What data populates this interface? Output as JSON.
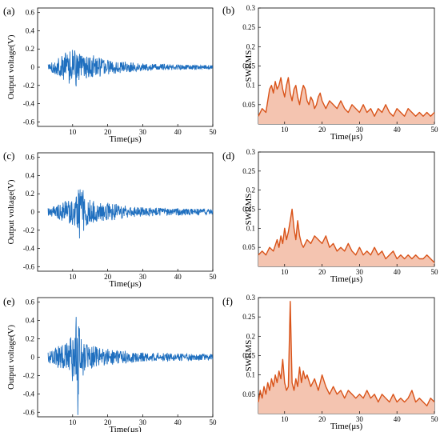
{
  "chart_data": [
    {
      "panel": "(a)",
      "type": "line",
      "title": "",
      "xlabel": "Time(μs)",
      "ylabel": "Output voltage(V)",
      "xlim": [
        0,
        50
      ],
      "ylim": [
        -0.65,
        0.65
      ],
      "xticks": [
        10,
        20,
        30,
        40,
        50
      ],
      "yticks": [
        -0.6,
        -0.4,
        -0.2,
        0,
        0.2,
        0.4,
        0.6
      ],
      "xticklabels": [
        "10",
        "20",
        "30",
        "40",
        "50"
      ],
      "yticklabels": [
        "-0.6",
        "-0.4",
        "-0.2",
        "0",
        "0.2",
        "0.4",
        "0.6"
      ],
      "color": "#1f6fbf",
      "series": [
        {
          "x": [
            3,
            6,
            8,
            9,
            10,
            11,
            12,
            14,
            16,
            20,
            25,
            30,
            40,
            50
          ],
          "y": [
            0.03,
            0.1,
            0.16,
            -0.18,
            0.19,
            -0.21,
            0.14,
            -0.12,
            0.13,
            0.08,
            0.06,
            0.04,
            0.03,
            0.02
          ]
        }
      ]
    },
    {
      "panel": "(b)",
      "type": "area",
      "title": "",
      "xlabel": "Time(μs)",
      "ylabel": "SWRMS",
      "xlim": [
        3,
        50
      ],
      "ylim": [
        0,
        0.3
      ],
      "xticks": [
        10,
        20,
        30,
        40,
        50
      ],
      "yticks": [
        0.05,
        0.1,
        0.15,
        0.2,
        0.25,
        0.3
      ],
      "xticklabels": [
        "10",
        "20",
        "30",
        "40",
        "50"
      ],
      "yticklabels": [
        "0.05",
        "0.1",
        "0.15",
        "0.2",
        "0.25",
        "0.3"
      ],
      "color": "#d95319",
      "fill": "#f4c4b0",
      "series": [
        {
          "x": [
            3,
            4,
            5,
            5.5,
            6,
            6.5,
            7,
            7.5,
            8,
            8.5,
            9,
            9.5,
            10,
            10.5,
            11,
            11.5,
            12,
            12.5,
            13,
            13.5,
            14,
            14.5,
            15,
            15.5,
            16,
            16.5,
            17,
            17.5,
            18,
            18.5,
            19,
            19.5,
            20,
            20.5,
            21,
            22,
            23,
            24,
            25,
            26,
            27,
            28,
            29,
            30,
            31,
            32,
            33,
            34,
            35,
            36,
            37,
            38,
            39,
            40,
            41,
            42,
            43,
            44,
            45,
            46,
            47,
            48,
            49,
            50
          ],
          "y": [
            0.02,
            0.04,
            0.03,
            0.06,
            0.09,
            0.1,
            0.08,
            0.11,
            0.09,
            0.1,
            0.12,
            0.09,
            0.07,
            0.1,
            0.12,
            0.08,
            0.06,
            0.09,
            0.1,
            0.07,
            0.05,
            0.08,
            0.1,
            0.09,
            0.06,
            0.05,
            0.07,
            0.06,
            0.04,
            0.05,
            0.07,
            0.08,
            0.06,
            0.05,
            0.04,
            0.06,
            0.05,
            0.04,
            0.06,
            0.04,
            0.03,
            0.05,
            0.04,
            0.03,
            0.05,
            0.03,
            0.04,
            0.02,
            0.04,
            0.03,
            0.05,
            0.03,
            0.02,
            0.04,
            0.03,
            0.02,
            0.04,
            0.03,
            0.02,
            0.03,
            0.02,
            0.03,
            0.02,
            0.03
          ]
        }
      ]
    },
    {
      "panel": "(c)",
      "type": "line",
      "title": "",
      "xlabel": "Time(μs)",
      "ylabel": "Output voltage(V)",
      "xlim": [
        0,
        50
      ],
      "ylim": [
        -0.65,
        0.65
      ],
      "xticks": [
        10,
        20,
        30,
        40,
        50
      ],
      "yticks": [
        -0.6,
        -0.4,
        -0.2,
        0,
        0.2,
        0.4,
        0.6
      ],
      "xticklabels": [
        "10",
        "20",
        "30",
        "40",
        "50"
      ],
      "yticklabels": [
        "-0.6",
        "-0.4",
        "-0.2",
        "0",
        "0.2",
        "0.4",
        "0.6"
      ],
      "color": "#1f6fbf",
      "series": [
        {
          "x": [
            3,
            6,
            8,
            10,
            11,
            12,
            13,
            14,
            16,
            20,
            25,
            30,
            40,
            50
          ],
          "y": [
            0.04,
            0.08,
            0.12,
            -0.14,
            0.16,
            -0.29,
            0.24,
            -0.15,
            0.12,
            0.1,
            0.07,
            0.05,
            0.04,
            0.03
          ]
        }
      ]
    },
    {
      "panel": "(d)",
      "type": "area",
      "title": "",
      "xlabel": "Time(μs)",
      "ylabel": "SWRMS",
      "xlim": [
        3,
        50
      ],
      "ylim": [
        0,
        0.3
      ],
      "xticks": [
        10,
        20,
        30,
        40,
        50
      ],
      "yticks": [
        0.05,
        0.1,
        0.15,
        0.2,
        0.25,
        0.3
      ],
      "xticklabels": [
        "10",
        "20",
        "30",
        "40",
        "50"
      ],
      "yticklabels": [
        "0.05",
        "0.1",
        "0.15",
        "0.2",
        "0.25",
        "0.3"
      ],
      "color": "#d95319",
      "fill": "#f4c4b0",
      "series": [
        {
          "x": [
            3,
            4,
            5,
            6,
            7,
            8,
            8.5,
            9,
            9.5,
            10,
            10.5,
            11,
            11.5,
            12,
            12.5,
            13,
            13.5,
            14,
            14.5,
            15,
            16,
            17,
            18,
            19,
            20,
            21,
            22,
            23,
            24,
            25,
            26,
            27,
            28,
            29,
            30,
            31,
            32,
            33,
            34,
            35,
            36,
            37,
            38,
            39,
            40,
            41,
            42,
            43,
            44,
            45,
            46,
            47,
            48,
            49,
            50
          ],
          "y": [
            0.03,
            0.04,
            0.03,
            0.05,
            0.04,
            0.07,
            0.05,
            0.08,
            0.06,
            0.1,
            0.07,
            0.09,
            0.12,
            0.15,
            0.1,
            0.07,
            0.12,
            0.08,
            0.06,
            0.05,
            0.07,
            0.06,
            0.08,
            0.07,
            0.06,
            0.08,
            0.05,
            0.06,
            0.04,
            0.05,
            0.04,
            0.06,
            0.04,
            0.03,
            0.05,
            0.03,
            0.04,
            0.03,
            0.05,
            0.03,
            0.04,
            0.02,
            0.03,
            0.04,
            0.02,
            0.03,
            0.02,
            0.03,
            0.02,
            0.03,
            0.02,
            0.02,
            0.03,
            0.02,
            0.01
          ]
        }
      ]
    },
    {
      "panel": "(e)",
      "type": "line",
      "title": "",
      "xlabel": "Time(μs)",
      "ylabel": "Output voltage(V)",
      "xlim": [
        0,
        50
      ],
      "ylim": [
        -0.65,
        0.65
      ],
      "xticks": [
        10,
        20,
        30,
        40,
        50
      ],
      "yticks": [
        -0.6,
        -0.4,
        -0.2,
        0,
        0.2,
        0.4,
        0.6
      ],
      "xticklabels": [
        "10",
        "20",
        "30",
        "40",
        "50"
      ],
      "yticklabels": [
        "-0.6",
        "-0.4",
        "-0.2",
        "0",
        "0.2",
        "0.4",
        "0.6"
      ],
      "color": "#1f6fbf",
      "series": [
        {
          "x": [
            3,
            6,
            8,
            10,
            11,
            11.5,
            12,
            13,
            14,
            16,
            20,
            25,
            30,
            40,
            50
          ],
          "y": [
            0.05,
            0.12,
            0.14,
            -0.26,
            0.44,
            -0.63,
            0.3,
            -0.2,
            0.14,
            0.12,
            0.09,
            0.07,
            0.05,
            0.04,
            0.03
          ]
        }
      ]
    },
    {
      "panel": "(f)",
      "type": "area",
      "title": "",
      "xlabel": "Time(μs)",
      "ylabel": "SWRMS",
      "xlim": [
        3,
        50
      ],
      "ylim": [
        0,
        0.3
      ],
      "xticks": [
        10,
        20,
        30,
        40,
        50
      ],
      "yticks": [
        0.05,
        0.1,
        0.15,
        0.2,
        0.25,
        0.3
      ],
      "xticklabels": [
        "10",
        "20",
        "30",
        "40",
        "50"
      ],
      "yticklabels": [
        "0.05",
        "0.1",
        "0.15",
        "0.2",
        "0.25",
        "0.3"
      ],
      "color": "#d95319",
      "fill": "#f4c4b0",
      "series": [
        {
          "x": [
            3,
            3.5,
            4,
            4.5,
            5,
            5.5,
            6,
            6.5,
            7,
            7.5,
            8,
            8.5,
            9,
            9.5,
            10,
            10.5,
            11,
            11.5,
            12,
            12.5,
            13,
            13.5,
            14,
            14.5,
            15,
            15.5,
            16,
            17,
            18,
            19,
            20,
            21,
            22,
            23,
            24,
            25,
            26,
            27,
            28,
            29,
            30,
            31,
            32,
            33,
            34,
            35,
            36,
            37,
            38,
            39,
            40,
            41,
            42,
            43,
            44,
            45,
            46,
            47,
            48,
            49,
            50
          ],
          "y": [
            0.03,
            0.06,
            0.04,
            0.07,
            0.05,
            0.08,
            0.06,
            0.09,
            0.07,
            0.1,
            0.08,
            0.11,
            0.09,
            0.14,
            0.08,
            0.06,
            0.07,
            0.29,
            0.08,
            0.06,
            0.09,
            0.07,
            0.12,
            0.08,
            0.11,
            0.09,
            0.1,
            0.07,
            0.09,
            0.06,
            0.1,
            0.07,
            0.05,
            0.07,
            0.05,
            0.06,
            0.04,
            0.06,
            0.05,
            0.04,
            0.05,
            0.04,
            0.06,
            0.04,
            0.05,
            0.03,
            0.05,
            0.04,
            0.03,
            0.05,
            0.03,
            0.04,
            0.03,
            0.04,
            0.06,
            0.03,
            0.04,
            0.03,
            0.02,
            0.04,
            0.03
          ]
        }
      ]
    }
  ]
}
